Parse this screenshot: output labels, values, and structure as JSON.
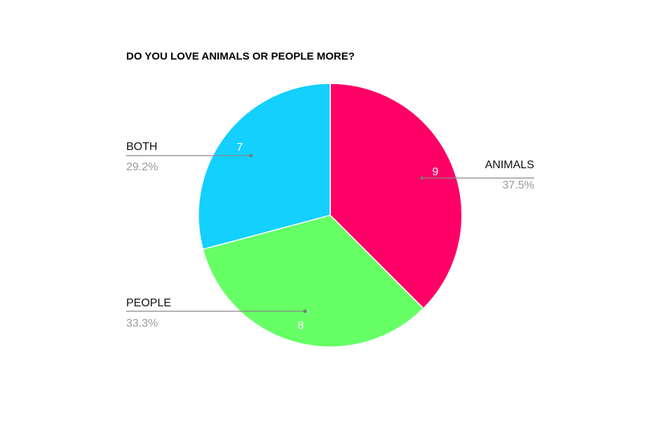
{
  "chart_data": {
    "type": "pie",
    "title": "DO YOU LOVE ANIMALS OR PEOPLE MORE?",
    "slices": [
      {
        "label": "ANIMALS",
        "value": 9,
        "percent": "37.5%",
        "color": "#ff0066"
      },
      {
        "label": "PEOPLE",
        "value": 8,
        "percent": "33.3%",
        "color": "#66ff66"
      },
      {
        "label": "BOTH",
        "value": 7,
        "percent": "29.2%",
        "color": "#13d0ff"
      }
    ],
    "start_angle": "top, clockwise",
    "legend": "none (callout labels)"
  }
}
